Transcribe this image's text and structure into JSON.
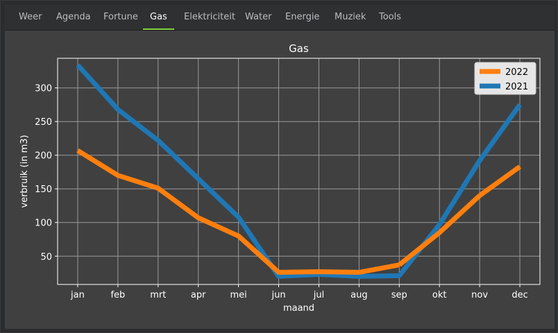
{
  "tabs": [
    {
      "label": "Weer"
    },
    {
      "label": "Agenda"
    },
    {
      "label": "Fortune"
    },
    {
      "label": "Gas",
      "active": true
    },
    {
      "label": "Elektriciteit"
    },
    {
      "label": "Water"
    },
    {
      "label": "Energie"
    },
    {
      "label": "Muziek"
    },
    {
      "label": "Tools"
    }
  ],
  "chart_data": {
    "type": "line",
    "title": "Gas",
    "xlabel": "maand",
    "ylabel": "verbruik (in m3)",
    "categories": [
      "jan",
      "feb",
      "mrt",
      "apr",
      "mei",
      "jun",
      "jul",
      "aug",
      "sep",
      "okt",
      "nov",
      "dec"
    ],
    "yticks": [
      50,
      100,
      150,
      200,
      250,
      300
    ],
    "ylim": [
      8,
      344
    ],
    "grid": true,
    "legend_position": "top-right",
    "series": [
      {
        "name": "2022",
        "color": "#ff7f0e",
        "values": [
          207,
          170,
          151,
          107,
          80,
          26,
          27,
          26,
          37,
          null,
          140,
          183
        ]
      },
      {
        "name": "2021",
        "color": "#1f77b4",
        "values": [
          334,
          268,
          222,
          165,
          108,
          20,
          23,
          20,
          21,
          97,
          192,
          275
        ]
      }
    ],
    "extra_segments": [
      {
        "series": "2022",
        "from": [
          8,
          37
        ],
        "to": [
          10,
          140
        ],
        "via": [
          [
            9,
            85
          ]
        ]
      }
    ]
  }
}
